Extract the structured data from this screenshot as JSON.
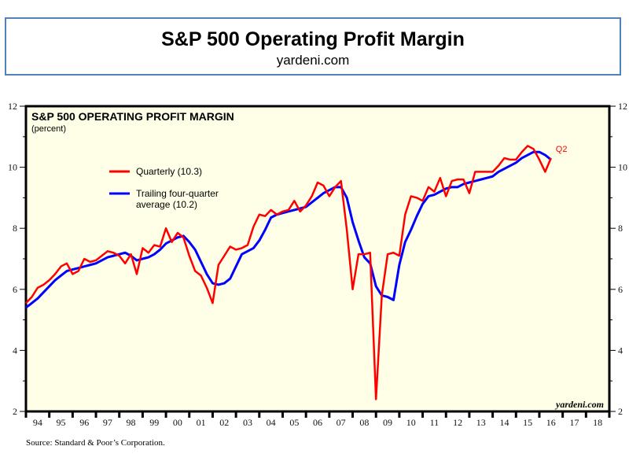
{
  "header": {
    "title": "S&P 500 Operating Profit Margin",
    "subtitle": "yardeni.com"
  },
  "source_note": "Source: Standard & Poor’s Corporation.",
  "colors": {
    "quarterly": "#ff0000",
    "trailing": "#0000ff",
    "plot_background": "#ffffe8",
    "title_border": "#4f81bd"
  },
  "chart_data": {
    "type": "line",
    "title": "S&P 500 OPERATING PROFIT MARGIN",
    "subtitle": "(percent)",
    "xlabel": "",
    "ylabel": "percent",
    "ylim": [
      2,
      12
    ],
    "xlim": [
      1994,
      2019
    ],
    "y_ticks": [
      2,
      4,
      6,
      8,
      10,
      12
    ],
    "x_tick_labels": [
      "94",
      "95",
      "96",
      "97",
      "98",
      "99",
      "00",
      "01",
      "02",
      "03",
      "04",
      "05",
      "06",
      "07",
      "08",
      "09",
      "10",
      "11",
      "12",
      "13",
      "14",
      "15",
      "16",
      "17",
      "18"
    ],
    "grid": false,
    "legend_placement": "upper-left",
    "annotations": [
      {
        "text": "Q2",
        "series": "Quarterly",
        "position": "end-of-series"
      },
      {
        "text": "yardeni.com",
        "position": "bottom-right"
      }
    ],
    "x_start": 1994.0,
    "x_step": 0.25,
    "series": [
      {
        "name": "Quarterly",
        "legend_label": "Quarterly (10.3)",
        "values": [
          5.55,
          5.75,
          6.05,
          6.15,
          6.3,
          6.5,
          6.75,
          6.85,
          6.5,
          6.6,
          7.0,
          6.9,
          6.95,
          7.1,
          7.25,
          7.2,
          7.1,
          6.85,
          7.15,
          6.5,
          7.35,
          7.2,
          7.45,
          7.4,
          8.0,
          7.55,
          7.85,
          7.7,
          7.1,
          6.6,
          6.45,
          6.05,
          5.55,
          6.8,
          7.1,
          7.4,
          7.3,
          7.35,
          7.45,
          8.05,
          8.45,
          8.4,
          8.6,
          8.45,
          8.55,
          8.6,
          8.9,
          8.55,
          8.75,
          9.05,
          9.5,
          9.4,
          9.05,
          9.35,
          9.55,
          7.95,
          6.0,
          7.15,
          7.15,
          7.2,
          2.4,
          5.8,
          7.15,
          7.2,
          7.1,
          8.45,
          9.05,
          9.0,
          8.9,
          9.35,
          9.2,
          9.65,
          9.05,
          9.55,
          9.6,
          9.6,
          9.15,
          9.85,
          9.85,
          9.85,
          9.85,
          10.05,
          10.3,
          10.25,
          10.25,
          10.5,
          10.7,
          10.6,
          10.25,
          9.85,
          10.3
        ]
      },
      {
        "name": "Trailing four-quarter average",
        "legend_label": "Trailing four-quarter average (10.2)",
        "values": [
          5.4,
          5.55,
          5.7,
          5.9,
          6.1,
          6.3,
          6.45,
          6.6,
          6.65,
          6.7,
          6.75,
          6.8,
          6.85,
          6.95,
          7.05,
          7.1,
          7.15,
          7.2,
          7.1,
          6.95,
          7.0,
          7.05,
          7.15,
          7.3,
          7.5,
          7.6,
          7.7,
          7.75,
          7.55,
          7.3,
          6.9,
          6.5,
          6.2,
          6.15,
          6.2,
          6.35,
          6.75,
          7.15,
          7.25,
          7.35,
          7.6,
          7.95,
          8.35,
          8.45,
          8.5,
          8.55,
          8.6,
          8.65,
          8.7,
          8.85,
          9.0,
          9.15,
          9.25,
          9.35,
          9.35,
          9.0,
          8.2,
          7.6,
          7.05,
          6.85,
          6.1,
          5.8,
          5.75,
          5.65,
          6.8,
          7.55,
          7.95,
          8.4,
          8.8,
          9.05,
          9.1,
          9.2,
          9.3,
          9.35,
          9.35,
          9.45,
          9.5,
          9.55,
          9.6,
          9.65,
          9.7,
          9.85,
          9.95,
          10.05,
          10.15,
          10.3,
          10.4,
          10.5,
          10.5,
          10.4,
          10.25
        ]
      }
    ]
  }
}
